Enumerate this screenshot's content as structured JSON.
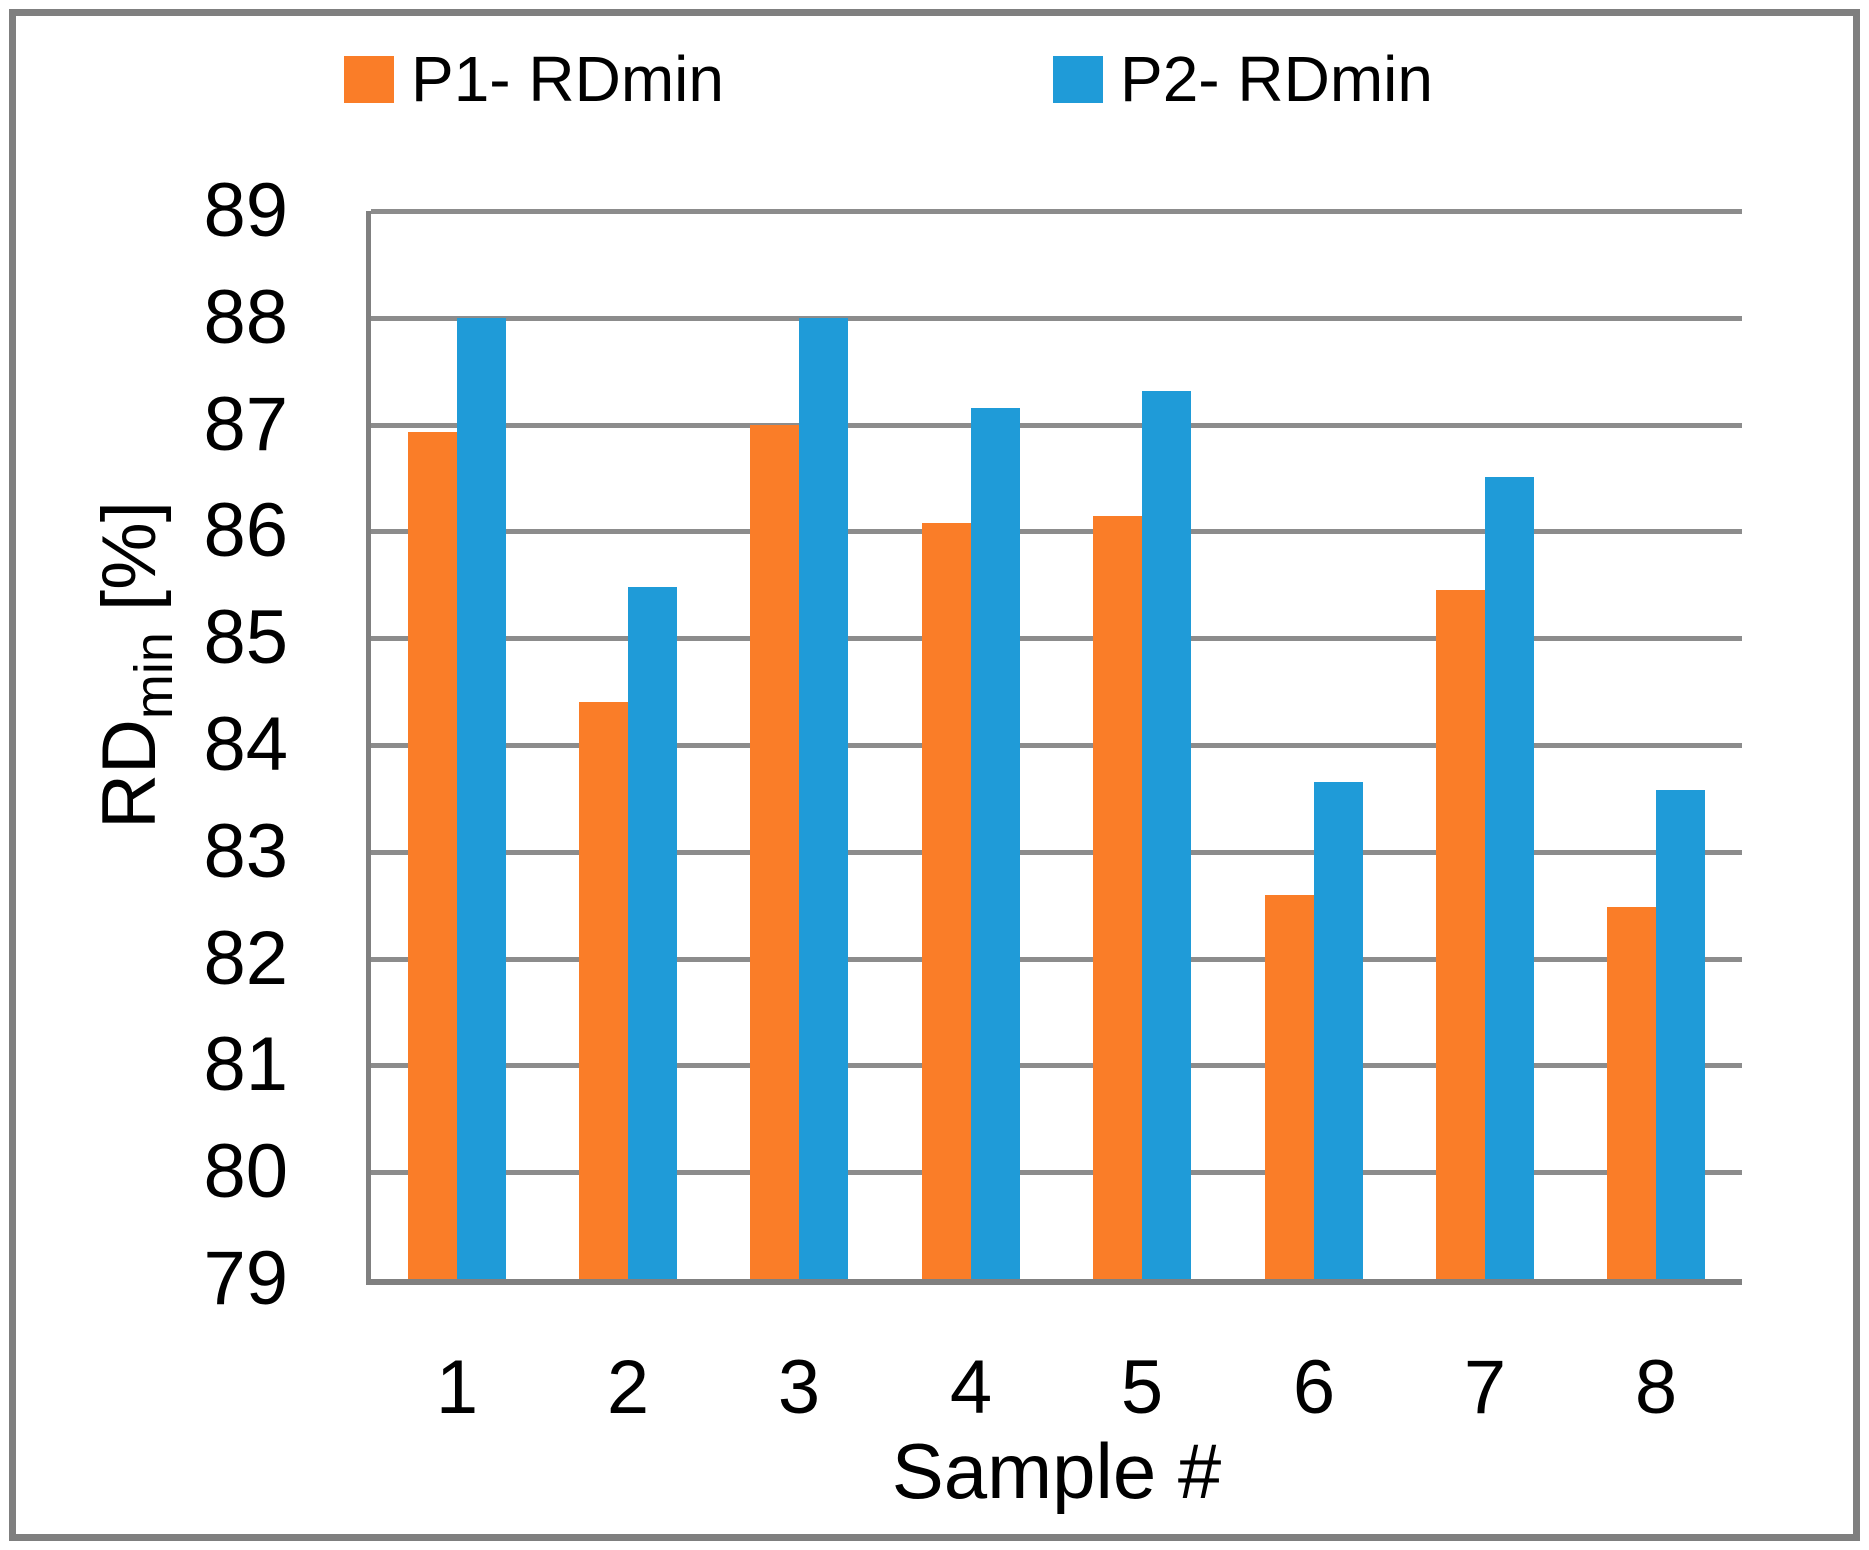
{
  "legend": {
    "items": [
      {
        "label": "P1- RDmin",
        "color": "#fa7d28"
      },
      {
        "label": "P2- RDmin",
        "color": "#1f9bd8"
      }
    ]
  },
  "chart_data": {
    "type": "bar",
    "title": "",
    "categories": [
      "1",
      "2",
      "3",
      "4",
      "5",
      "6",
      "7",
      "8"
    ],
    "series": [
      {
        "name": "P1- RDmin",
        "color": "#fa7d28",
        "values": [
          86.93,
          84.4,
          87.0,
          86.08,
          86.14,
          82.6,
          85.45,
          82.48
        ]
      },
      {
        "name": "P2- RDmin",
        "color": "#1f9bd8",
        "values": [
          88.0,
          85.48,
          88.0,
          87.16,
          87.31,
          83.65,
          86.51,
          83.58
        ]
      }
    ],
    "xlabel": "Sample #",
    "ylabel": "RDmin [%]",
    "ylabel_parts": {
      "main": "RD",
      "sub": "min",
      "unit": " [%]"
    },
    "ylim": [
      79,
      89
    ],
    "yticks": [
      89,
      88,
      87,
      86,
      85,
      84,
      83,
      82,
      81,
      80,
      79
    ],
    "grid": "horizontal-major",
    "legend_position": "top"
  },
  "style_colors": {
    "gridline": "#8c8c8c",
    "axis": "#808080",
    "frame": "#7f7f7f",
    "text": "#000000",
    "background": "#ffffff"
  }
}
